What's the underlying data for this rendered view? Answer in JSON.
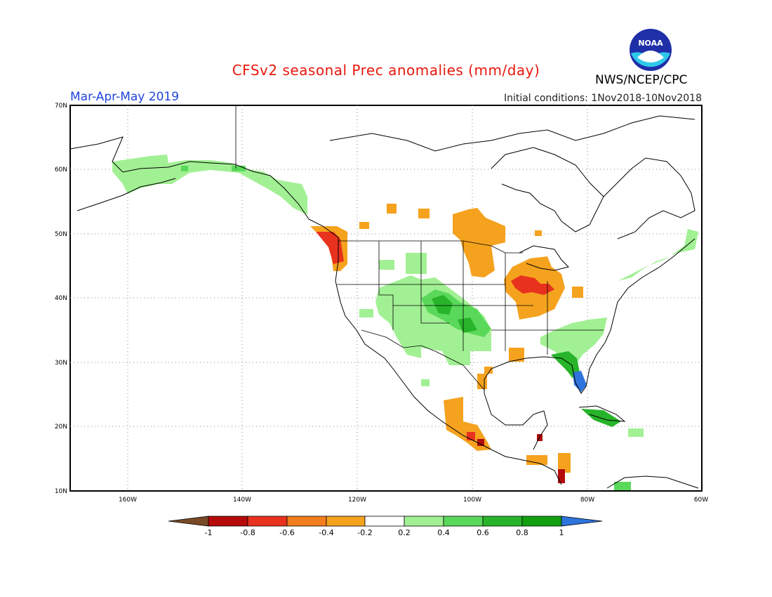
{
  "title": "CFSv2 seasonal Prec anomalies (mm/day)",
  "season": "Mar-Apr-May 2019",
  "initial_conditions": "Initial conditions: 1Nov2018-10Nov2018",
  "agency": "NWS/NCEP/CPC",
  "logo_text": "NOAA",
  "lat_labels": [
    "70N",
    "60N",
    "50N",
    "40N",
    "30N",
    "20N",
    "10N"
  ],
  "lon_labels": [
    "160W",
    "140W",
    "120W",
    "100W",
    "80W",
    "60W"
  ],
  "colorbar": {
    "ticks": [
      "-1",
      "-0.8",
      "-0.6",
      "-0.4",
      "-0.2",
      "0.2",
      "0.4",
      "0.6",
      "0.8",
      "1"
    ],
    "colors": [
      "#7a4a28",
      "#b40a0a",
      "#e8321e",
      "#f47d1e",
      "#f5a21e",
      "#ffffff",
      "#a2f094",
      "#5ad85a",
      "#27b42a",
      "#12a012",
      "#2f73dc"
    ]
  },
  "anomaly_colors": {
    "dry_strong": "#b40a0a",
    "dry_moderate": "#e8321e",
    "dry_weak": "#f5a21e",
    "wet_weak": "#a2f094",
    "wet_moderate": "#5ad85a",
    "wet_strong": "#27b42a",
    "wet_very_strong": "#2f73dc"
  }
}
